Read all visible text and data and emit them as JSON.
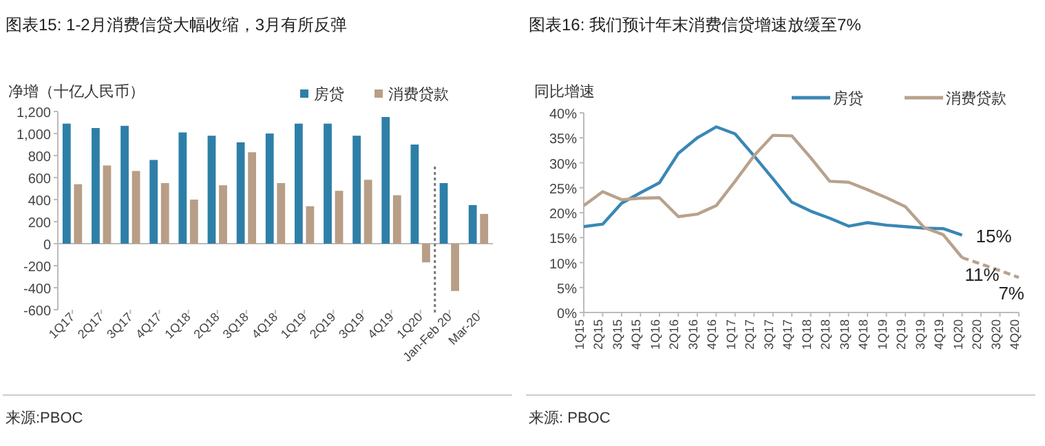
{
  "chart_data": [
    {
      "type": "bar",
      "title": "图表15: 1-2月消费信贷大幅收缩，3月有所反弹",
      "ylabel": "净增（十亿人民币）",
      "categories": [
        "1Q17",
        "2Q17",
        "3Q17",
        "4Q17",
        "1Q18",
        "2Q18",
        "3Q18",
        "4Q18",
        "1Q19",
        "2Q19",
        "3Q19",
        "4Q19",
        "1Q20",
        "Jan-Feb 20",
        "Mar-20"
      ],
      "series": [
        {
          "name": "房贷",
          "color": "#2e7fa8",
          "values": [
            1090,
            1050,
            1070,
            760,
            1010,
            980,
            920,
            1000,
            1090,
            1090,
            980,
            1150,
            900,
            550,
            350
          ]
        },
        {
          "name": "消费贷款",
          "color": "#b89e86",
          "values": [
            540,
            710,
            660,
            550,
            400,
            530,
            830,
            550,
            340,
            480,
            580,
            440,
            -170,
            -430,
            270
          ]
        }
      ],
      "ylim": [
        -600,
        1200
      ],
      "yticks": [
        {
          "value": -600,
          "label": "-600"
        },
        {
          "value": -400,
          "label": "-400"
        },
        {
          "value": -200,
          "label": "-200"
        },
        0,
        200,
        400,
        600,
        800,
        {
          "value": 1000,
          "label": "1,000"
        },
        {
          "value": 1200,
          "label": "1,200"
        }
      ],
      "legend": "top right",
      "annotations": [
        "来源:PBOC"
      ]
    },
    {
      "type": "line",
      "title": "图表16: 我们预计年末消费信贷增速放缓至7%",
      "ylabel": "同比增速",
      "categories": [
        "1Q15",
        "2Q15",
        "3Q15",
        "4Q15",
        "1Q16",
        "2Q16",
        "3Q16",
        "4Q16",
        "1Q17",
        "2Q17",
        "3Q17",
        "4Q17",
        "1Q18",
        "2Q18",
        "3Q18",
        "4Q18",
        "1Q19",
        "2Q19",
        "3Q19",
        "4Q19",
        "1Q20",
        "2Q20",
        "3Q20",
        "4Q20"
      ],
      "series": [
        {
          "name": "房贷",
          "color": "#3a87b5",
          "values": [
            17.2,
            17.7,
            21.9,
            24,
            26,
            31.9,
            35,
            37.2,
            35.8,
            31.4,
            26.8,
            22.1,
            20.3,
            18.9,
            17.3,
            18,
            17.5,
            17.2,
            16.9,
            16.8,
            15.5,
            null,
            null,
            null
          ]
        },
        {
          "name": "消费贷款",
          "color": "#b8a28c",
          "values": [
            21.4,
            24.2,
            22.6,
            22.9,
            23,
            19.2,
            19.7,
            21.4,
            26.3,
            31.4,
            35.5,
            35.4,
            31,
            26.3,
            26.1,
            24.6,
            23,
            21.2,
            17,
            15.6,
            11,
            null,
            null,
            null
          ]
        },
        {
          "color": "#b8a28c",
          "line_style": "dashed",
          "values": [
            null,
            null,
            null,
            null,
            null,
            null,
            null,
            null,
            null,
            null,
            null,
            null,
            null,
            null,
            null,
            null,
            null,
            null,
            null,
            null,
            11,
            9.7,
            8.4,
            7
          ]
        }
      ],
      "ylim": [
        0,
        40
      ],
      "yticks": [
        {
          "value": 0,
          "label": "0%"
        },
        {
          "value": 5,
          "label": "5%"
        },
        {
          "value": 10,
          "label": "10%"
        },
        {
          "value": 15,
          "label": "15%"
        },
        {
          "value": 20,
          "label": "20%"
        },
        {
          "value": 25,
          "label": "25%"
        },
        {
          "value": 30,
          "label": "30%"
        },
        {
          "value": 35,
          "label": "35%"
        },
        {
          "value": 40,
          "label": "40%"
        }
      ],
      "legend": "top right",
      "grid": false,
      "marker": "none",
      "annotations": [
        {
          "text": "15%",
          "x": "1Q20",
          "y": 15.5
        },
        {
          "text": "11%",
          "x": "1Q20",
          "y": 11
        },
        {
          "text": "7%",
          "x": "4Q20",
          "y": 7
        },
        "来源: PBOC"
      ]
    }
  ]
}
